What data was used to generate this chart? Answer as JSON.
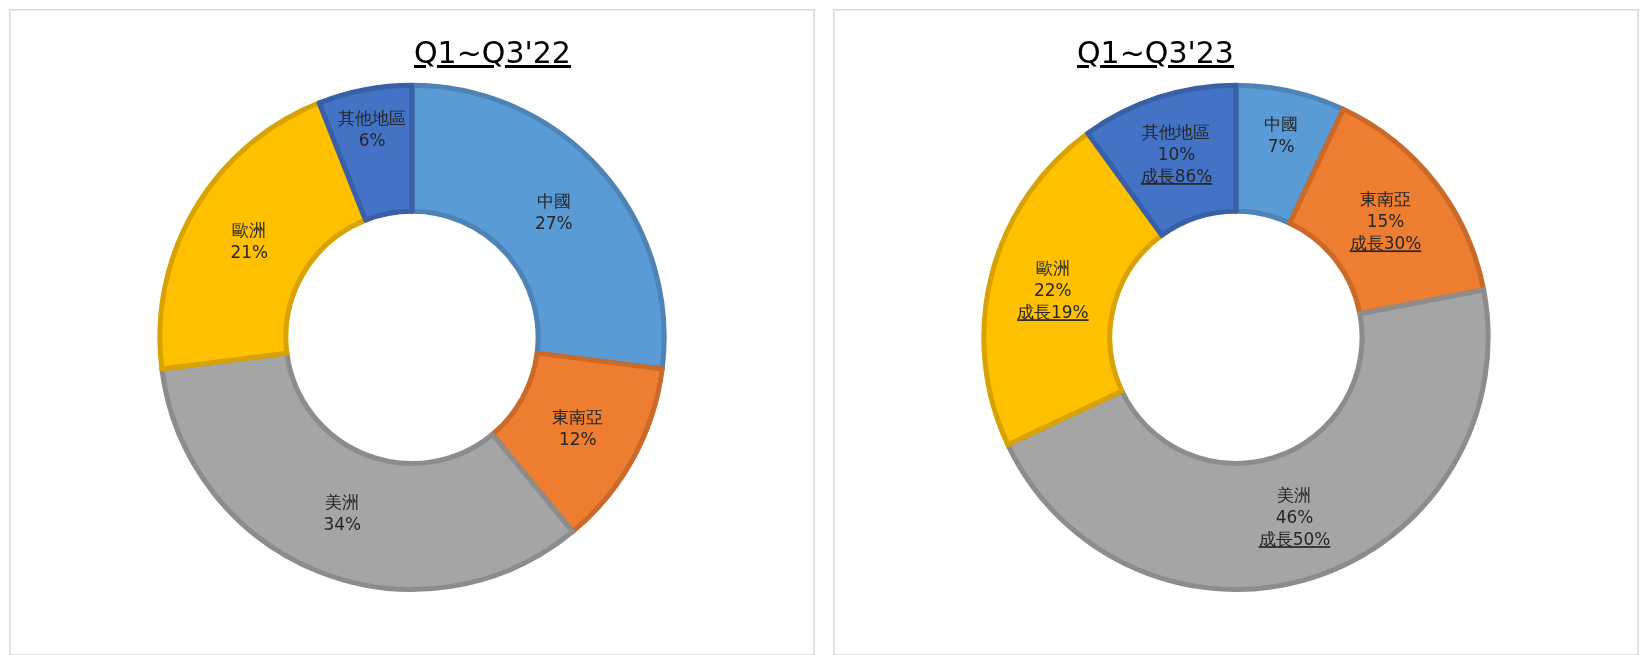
{
  "chart_data": [
    {
      "type": "donut",
      "title": "Q1~Q3'22",
      "categories": [
        "中國",
        "東南亞",
        "美洲",
        "歐洲",
        "其他地區"
      ],
      "values": [
        27,
        12,
        34,
        21,
        6
      ],
      "colors": [
        "#5b9bd5",
        "#ed7d31",
        "#a5a5a5",
        "#ffc000",
        "#4472c4"
      ],
      "value_labels": [
        "27%",
        "12%",
        "34%",
        "21%",
        "6%"
      ],
      "legend": false
    },
    {
      "type": "donut",
      "title": "Q1~Q3'23",
      "categories": [
        "中國",
        "東南亞",
        "美洲",
        "歐洲",
        "其他地區"
      ],
      "values": [
        7,
        15,
        46,
        22,
        10
      ],
      "colors": [
        "#5b9bd5",
        "#ed7d31",
        "#a5a5a5",
        "#ffc000",
        "#4472c4"
      ],
      "value_labels": [
        "7%",
        "15%\n成長30%",
        "46%\n成長50%",
        "22%\n成長19%",
        "10%\n成長86%"
      ],
      "legend": false
    }
  ]
}
